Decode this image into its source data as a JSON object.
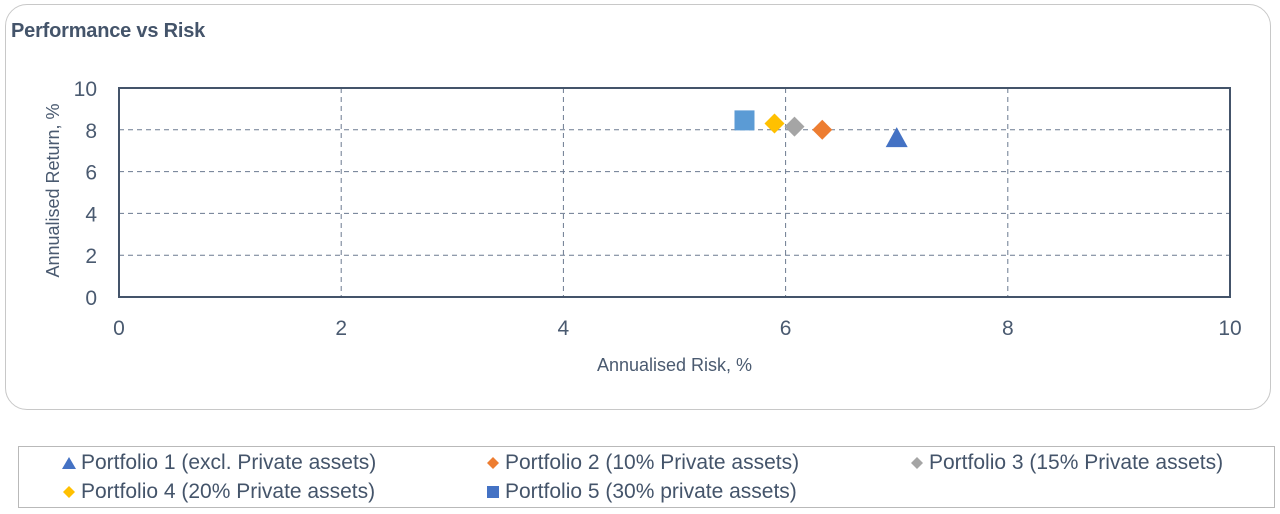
{
  "title": "Performance vs Risk",
  "colors": {
    "axis": "#44546a",
    "grid": "#6b7a90",
    "text": "#44546a"
  },
  "chart_data": {
    "type": "scatter",
    "title": "Performance vs Risk",
    "xlabel": "Annualised Risk, %",
    "ylabel": "Annualised Return, %",
    "xlim": [
      0,
      10
    ],
    "ylim": [
      0,
      10
    ],
    "xticks": [
      0,
      2,
      4,
      6,
      8,
      10
    ],
    "yticks": [
      0,
      2,
      4,
      6,
      8,
      10
    ],
    "grid": true,
    "legend_position": "bottom",
    "series": [
      {
        "name": "Portfolio 1 (excl. Private assets)",
        "marker": "triangle",
        "color": "#4472c4",
        "x": 7.0,
        "y": 7.6
      },
      {
        "name": "Portfolio 2 (10% Private assets)",
        "marker": "diamond",
        "color": "#ed7d31",
        "x": 6.33,
        "y": 8.0
      },
      {
        "name": "Portfolio 3 (15% Private assets)",
        "marker": "diamond",
        "color": "#a5a5a5",
        "x": 6.08,
        "y": 8.15
      },
      {
        "name": "Portfolio 4 (20% Private assets)",
        "marker": "diamond",
        "color": "#ffc000",
        "x": 5.9,
        "y": 8.3
      },
      {
        "name": "Portfolio 5 (30% private assets)",
        "marker": "square",
        "color": "#5b9bd5",
        "x": 5.63,
        "y": 8.45
      }
    ]
  }
}
